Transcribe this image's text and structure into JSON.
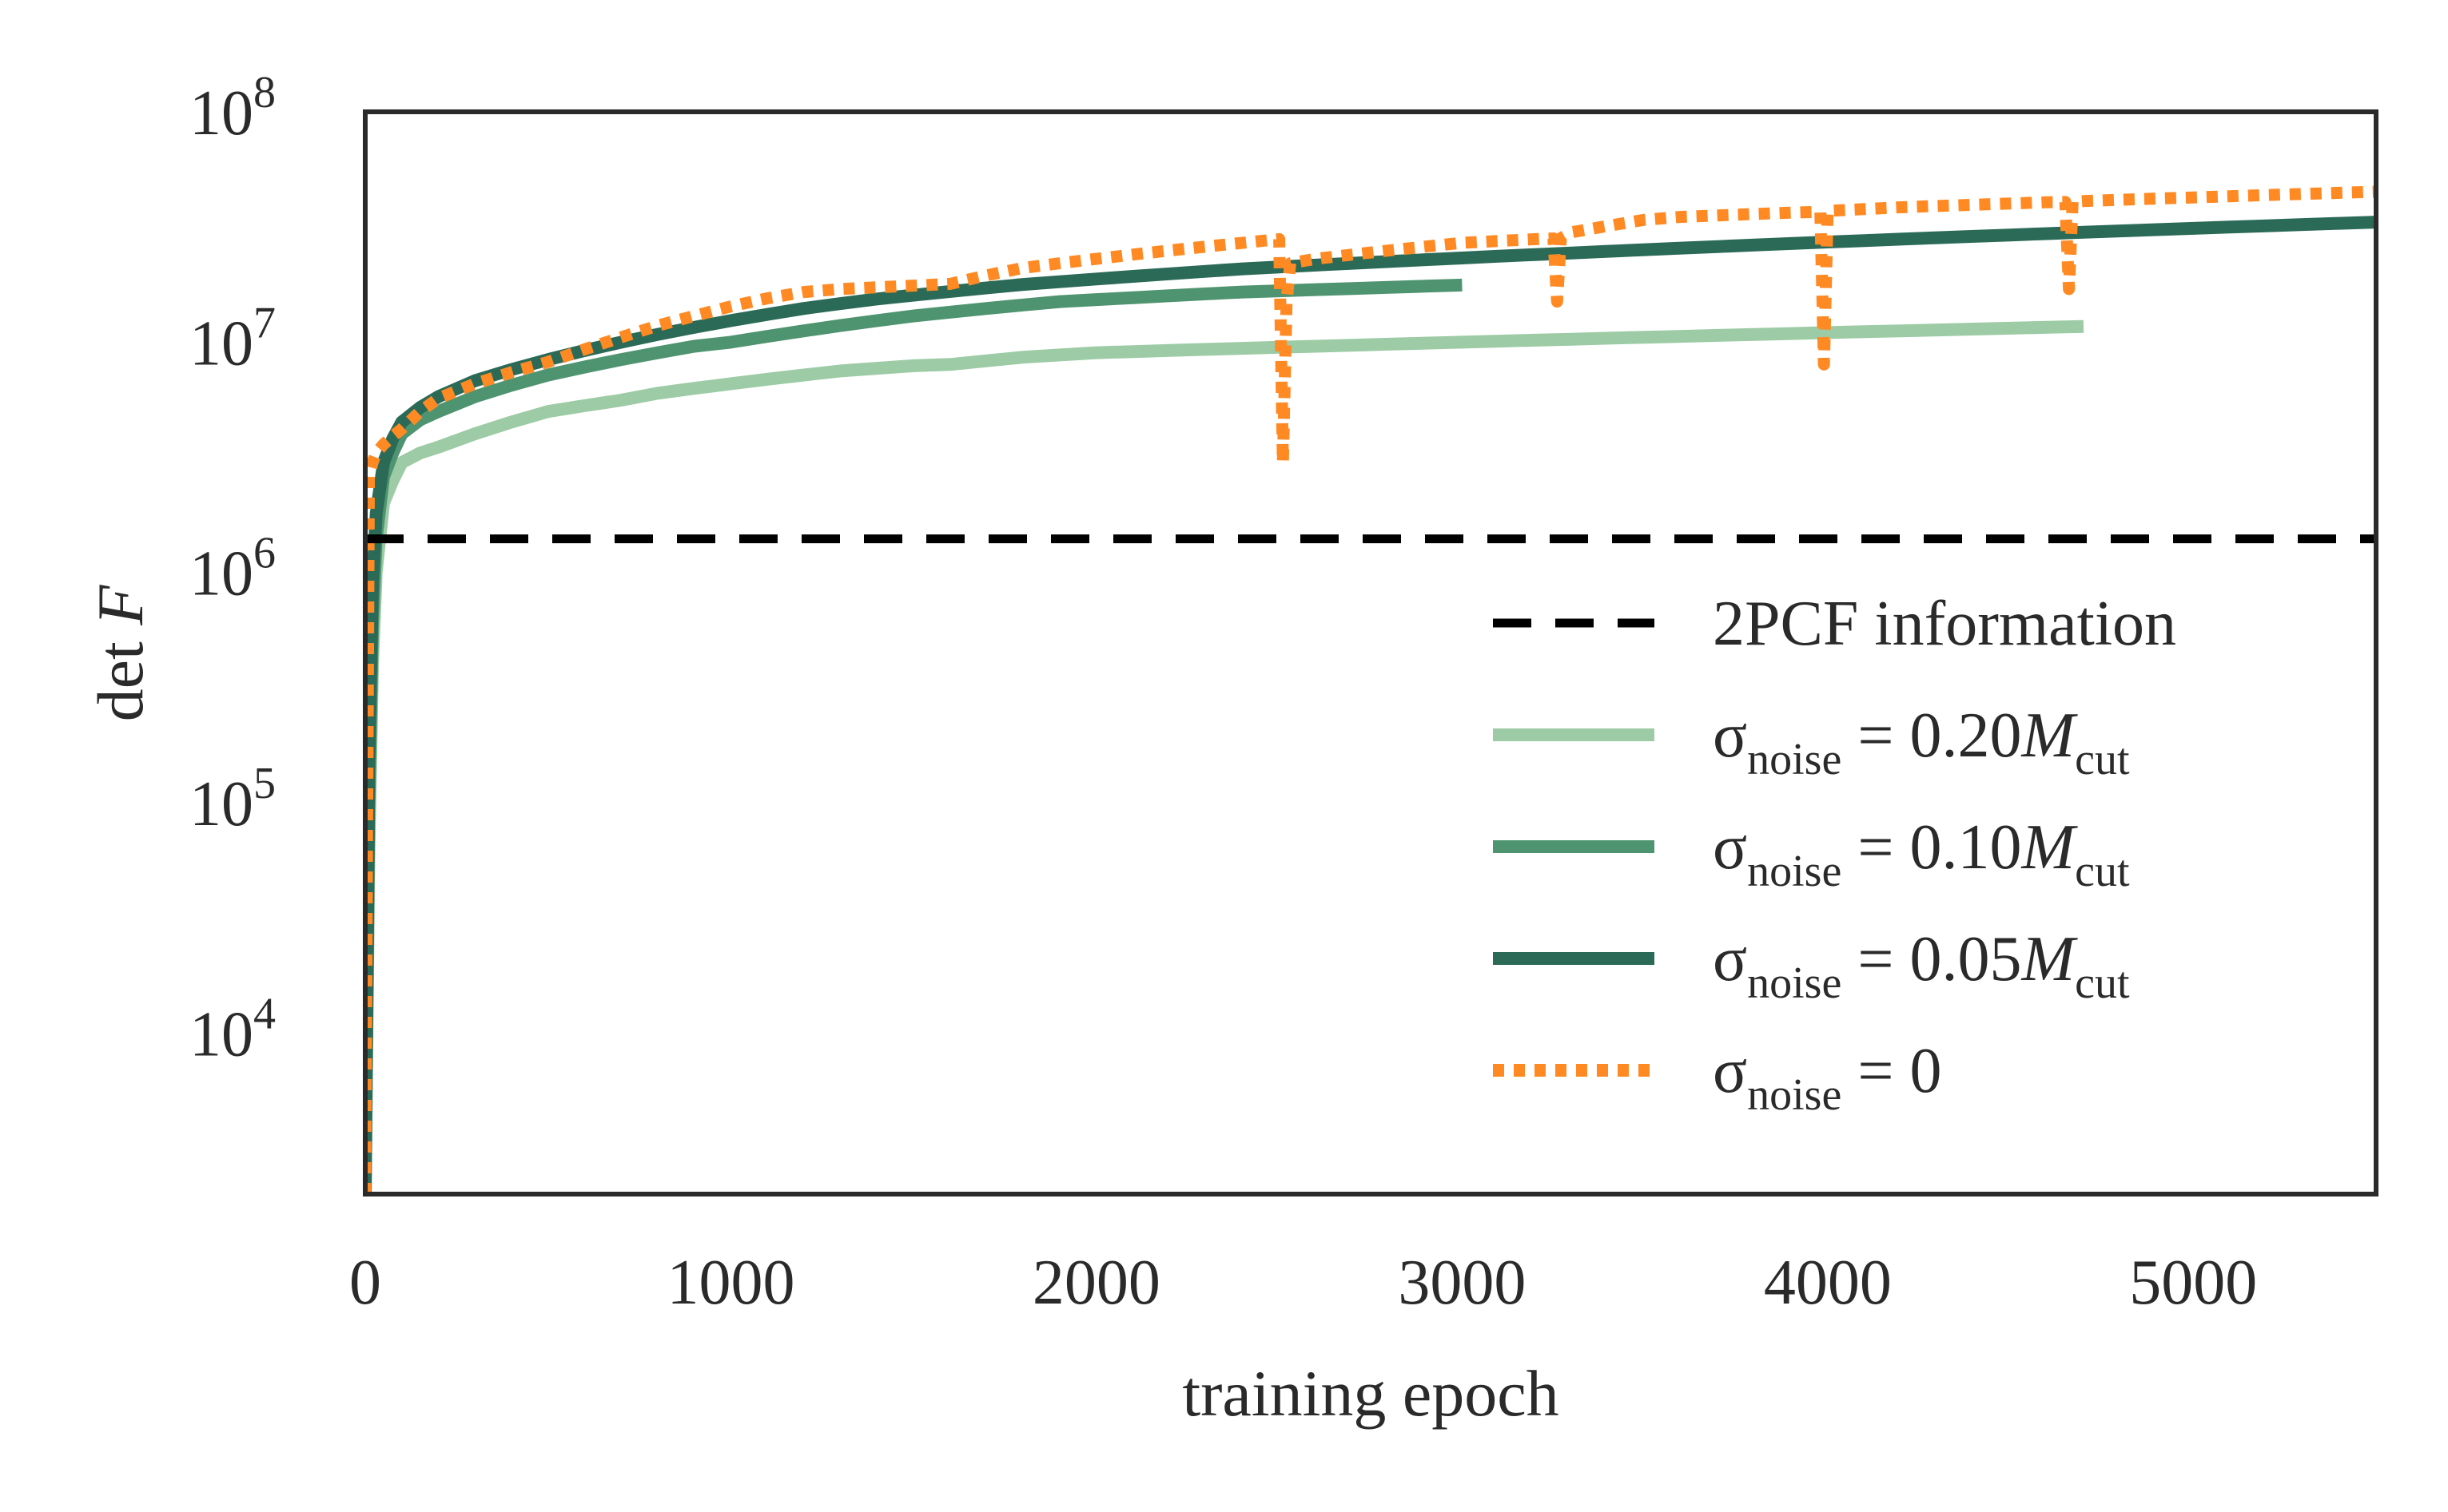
{
  "chart_data": {
    "type": "line",
    "xlabel": "training epoch",
    "ylabel": "det F",
    "ylabel_parts": {
      "prefix": "det ",
      "var": "F"
    },
    "xlim": [
      0,
      5500
    ],
    "ylim": [
      2000,
      100000000
    ],
    "yscale": "log",
    "grid": false,
    "legend_position": "right",
    "x_ticks": [
      {
        "value": 0,
        "label": "0"
      },
      {
        "value": 1000,
        "label": "1000"
      },
      {
        "value": 2000,
        "label": "2000"
      },
      {
        "value": 3000,
        "label": "3000"
      },
      {
        "value": 4000,
        "label": "4000"
      },
      {
        "value": 5000,
        "label": "5000"
      }
    ],
    "y_ticks": [
      {
        "value": 10000,
        "base": "10",
        "exp": "4"
      },
      {
        "value": 100000,
        "base": "10",
        "exp": "5"
      },
      {
        "value": 1000000,
        "base": "10",
        "exp": "6"
      },
      {
        "value": 10000000,
        "base": "10",
        "exp": "7"
      },
      {
        "value": 100000000,
        "base": "10",
        "exp": "8"
      }
    ],
    "reference_line": {
      "name": "2PCF information",
      "y": 1400000,
      "color": "#000000",
      "style": "dashed"
    },
    "series": [
      {
        "name": "σnoise = 0.20Mcut",
        "legend": {
          "sym": "σ",
          "sub": "noise",
          "eq": " = 0.20",
          "M": "M",
          "msub": "cut"
        },
        "color": "#9ccba5",
        "style": "solid",
        "x": [
          0,
          10,
          20,
          30,
          50,
          75,
          100,
          150,
          200,
          300,
          400,
          500,
          600,
          700,
          800,
          900,
          1000,
          1100,
          1200,
          1300,
          1400,
          1500,
          1600,
          1700,
          1800,
          1900,
          2000,
          2100,
          2200,
          2300,
          2400,
          2500,
          2600,
          2700,
          2800,
          2900,
          3000,
          3100,
          3200,
          3300,
          3400,
          3500,
          3600,
          3700,
          3800,
          3900,
          4000,
          4100,
          4200,
          4300,
          4400,
          4500,
          4600,
          4700
        ],
        "y": [
          2000,
          60000,
          400000,
          1000000,
          2000000,
          2500000,
          3000000,
          3300000,
          3500000,
          4000000,
          4500000,
          5000000,
          5300000,
          5600000,
          6000000,
          6300000,
          6600000,
          6900000,
          7200000,
          7500000,
          7700000,
          7900000,
          8000000,
          8300000,
          8600000,
          8800000,
          9000000,
          9100000,
          9200000,
          9300000,
          9400000,
          9500000,
          9600000,
          9700000,
          9800000,
          9900000,
          10000000,
          10100000,
          10200000,
          10300000,
          10400000,
          10500000,
          10600000,
          10700000,
          10800000,
          10900000,
          11000000,
          11100000,
          11200000,
          11300000,
          11400000,
          11500000,
          11600000,
          11700000
        ]
      },
      {
        "name": "σnoise = 0.10Mcut",
        "legend": {
          "sym": "σ",
          "sub": "noise",
          "eq": " = 0.10",
          "M": "M",
          "msub": "cut"
        },
        "color": "#4f9470",
        "style": "solid",
        "x": [
          0,
          10,
          20,
          30,
          50,
          75,
          100,
          150,
          200,
          300,
          400,
          500,
          600,
          700,
          800,
          900,
          1000,
          1100,
          1200,
          1300,
          1400,
          1500,
          1600,
          1700,
          1800,
          1900,
          2000,
          2100,
          2200,
          2300,
          2400,
          2500,
          2600,
          2700,
          2800,
          2900,
          3000
        ],
        "y": [
          2000,
          100000,
          600000,
          1400000,
          2600000,
          3300000,
          4000000,
          4600000,
          5000000,
          5800000,
          6500000,
          7200000,
          7800000,
          8400000,
          9000000,
          9600000,
          10000000,
          10600000,
          11200000,
          11800000,
          12400000,
          13000000,
          13500000,
          14000000,
          14500000,
          15000000,
          15300000,
          15600000,
          15900000,
          16200000,
          16500000,
          16700000,
          16900000,
          17100000,
          17300000,
          17500000,
          17700000
        ]
      },
      {
        "name": "σnoise = 0.05Mcut",
        "legend": {
          "sym": "σ",
          "sub": "noise",
          "eq": " = 0.05",
          "M": "M",
          "msub": "cut"
        },
        "color": "#2b6a57",
        "style": "solid",
        "x": [
          0,
          10,
          20,
          30,
          50,
          75,
          100,
          150,
          200,
          300,
          400,
          500,
          600,
          700,
          800,
          900,
          1000,
          1100,
          1200,
          1300,
          1400,
          1500,
          1600,
          1700,
          1800,
          1900,
          2000,
          2100,
          2200,
          2300,
          2400,
          2500,
          2600,
          2700,
          2800,
          2900,
          3000,
          3100,
          3200,
          3300,
          3400,
          3500,
          3600,
          3700,
          3800,
          3900,
          4000,
          4100,
          4200,
          4300,
          4400,
          4500,
          4600,
          4700,
          4800,
          4900,
          5000,
          5100,
          5200,
          5300,
          5400,
          5500
        ],
        "y": [
          2000,
          150000,
          900000,
          1800000,
          3000000,
          3800000,
          4500000,
          5200000,
          5800000,
          6800000,
          7600000,
          8400000,
          9200000,
          10000000,
          10800000,
          11600000,
          12400000,
          13200000,
          14000000,
          14700000,
          15400000,
          16000000,
          16600000,
          17200000,
          17800000,
          18300000,
          18800000,
          19300000,
          19800000,
          20300000,
          20800000,
          21200000,
          21600000,
          22000000,
          22400000,
          22800000,
          23200000,
          23600000,
          24000000,
          24400000,
          24800000,
          25200000,
          25600000,
          26000000,
          26400000,
          26800000,
          27200000,
          27600000,
          28000000,
          28400000,
          28800000,
          29200000,
          29600000,
          30000000,
          30400000,
          30800000,
          31200000,
          31600000,
          32000000,
          32400000,
          32800000,
          33200000
        ]
      },
      {
        "name": "σnoise = 0",
        "legend": {
          "sym": "σ",
          "sub": "noise",
          "eq": " = 0",
          "M": "",
          "msub": ""
        },
        "color": "#ff8a24",
        "style": "dotted",
        "x": [
          0,
          10,
          20,
          30,
          50,
          75,
          100,
          150,
          200,
          300,
          400,
          500,
          600,
          700,
          800,
          900,
          1000,
          1100,
          1200,
          1300,
          1400,
          1500,
          1600,
          1700,
          1800,
          1900,
          2000,
          2100,
          2200,
          2300,
          2400,
          2500,
          2510,
          2520,
          2530,
          2600,
          2700,
          2800,
          2900,
          3000,
          3100,
          3200,
          3250,
          3260,
          3270,
          3300,
          3400,
          3500,
          3600,
          3700,
          3800,
          3900,
          3980,
          3990,
          4000,
          4010,
          4100,
          4200,
          4300,
          4400,
          4500,
          4600,
          4650,
          4660,
          4670,
          4700,
          4800,
          4900,
          5000,
          5100,
          5200,
          5300,
          5400,
          5500
        ],
        "y": [
          2000,
          2600000,
          3000000,
          3300000,
          3600000,
          3900000,
          4200000,
          5000000,
          5700000,
          6600000,
          7400000,
          8200000,
          9300000,
          10500000,
          11800000,
          13000000,
          14300000,
          15500000,
          16500000,
          17000000,
          17300000,
          17600000,
          17900000,
          19500000,
          21000000,
          22000000,
          23000000,
          24000000,
          25000000,
          26000000,
          27000000,
          28000000,
          3000000,
          15000000,
          22000000,
          23000000,
          24000000,
          25000000,
          26000000,
          27000000,
          27500000,
          28000000,
          28200000,
          15000000,
          28300000,
          30000000,
          32000000,
          34000000,
          35000000,
          35500000,
          36000000,
          36500000,
          36800000,
          8000000,
          37000000,
          37200000,
          37800000,
          38500000,
          39000000,
          39500000,
          40000000,
          40500000,
          40600000,
          17000000,
          40700000,
          41000000,
          41500000,
          42000000,
          42500000,
          43000000,
          43500000,
          44000000,
          44500000,
          45000000
        ]
      }
    ]
  }
}
